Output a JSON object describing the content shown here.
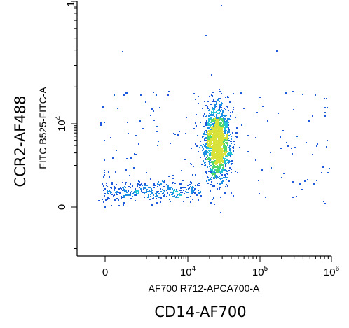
{
  "chart_data": {
    "type": "scatter",
    "style": "flow-cytometry pseudocolor density dot plot",
    "xlabel": "AF700 R712-APCA700-A",
    "ylabel": "FITC B525-FITC-A",
    "xlabel_outer": "CD14-AF700",
    "ylabel_outer": "CCR2-AF488",
    "x_scale": "biexponential",
    "y_scale": "biexponential",
    "xlim": [
      -1000,
      1000000
    ],
    "ylim": [
      -1000,
      100000
    ],
    "x_ticks": [
      {
        "value": 0,
        "base": "0",
        "exp": ""
      },
      {
        "value": 10000,
        "base": "10",
        "exp": "4"
      },
      {
        "value": 100000,
        "base": "10",
        "exp": "5"
      },
      {
        "value": 1000000,
        "base": "10",
        "exp": "6"
      }
    ],
    "y_ticks": [
      {
        "value": 0,
        "base": "0",
        "exp": ""
      },
      {
        "value": 10000,
        "base": "10",
        "exp": "4"
      }
    ],
    "y_top_tick_partial": "1",
    "grid": false,
    "density_colors": [
      "#1e5adc",
      "#1f8fe6",
      "#22c3d6",
      "#52d66e",
      "#d8e23a"
    ],
    "populations": [
      {
        "name": "main",
        "x_center": 25000,
        "y_center": 3500,
        "count": 1400
      },
      {
        "name": "low-spread",
        "x_center": 3000,
        "y_center": 300,
        "count": 300
      },
      {
        "name": "background",
        "x_center": 20000,
        "y_center": 2000,
        "count": 180
      }
    ]
  }
}
